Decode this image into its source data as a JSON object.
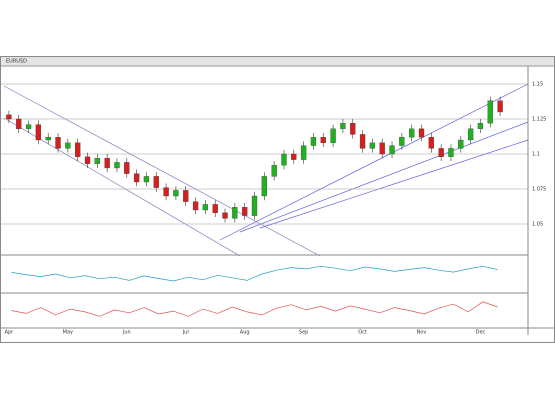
{
  "chart_data": {
    "type": "candlestick",
    "title": "EURUSD",
    "x": [
      "Apr",
      null,
      null,
      null,
      null,
      null,
      "May",
      null,
      null,
      null,
      null,
      null,
      "Jun",
      null,
      null,
      null,
      null,
      null,
      "Jul",
      null,
      null,
      null,
      null,
      null,
      "Aug",
      null,
      null,
      null,
      null,
      null,
      "Sep",
      null,
      null,
      null,
      null,
      null,
      "Oct",
      null,
      null,
      null,
      null,
      null,
      "Nov",
      null,
      null,
      null,
      null,
      null,
      "Dec",
      null,
      null
    ],
    "open": [
      1.128,
      1.125,
      1.118,
      1.121,
      1.11,
      1.112,
      1.104,
      1.108,
      1.098,
      1.093,
      1.097,
      1.09,
      1.094,
      1.086,
      1.08,
      1.084,
      1.076,
      1.07,
      1.074,
      1.066,
      1.06,
      1.064,
      1.058,
      1.054,
      1.062,
      1.056,
      1.07,
      1.084,
      1.092,
      1.1,
      1.096,
      1.106,
      1.112,
      1.108,
      1.118,
      1.122,
      1.114,
      1.104,
      1.108,
      1.1,
      1.106,
      1.112,
      1.118,
      1.112,
      1.104,
      1.098,
      1.104,
      1.11,
      1.118,
      1.122,
      1.138
    ],
    "high": [
      1.131,
      1.128,
      1.124,
      1.124,
      1.115,
      1.115,
      1.111,
      1.111,
      1.101,
      1.1,
      1.1,
      1.097,
      1.097,
      1.089,
      1.087,
      1.087,
      1.079,
      1.077,
      1.077,
      1.069,
      1.067,
      1.067,
      1.061,
      1.065,
      1.065,
      1.073,
      1.087,
      1.095,
      1.103,
      1.103,
      1.109,
      1.115,
      1.115,
      1.121,
      1.125,
      1.125,
      1.117,
      1.111,
      1.111,
      1.109,
      1.115,
      1.121,
      1.121,
      1.115,
      1.107,
      1.107,
      1.113,
      1.121,
      1.125,
      1.141,
      1.141
    ],
    "low": [
      1.122,
      1.115,
      1.115,
      1.107,
      1.107,
      1.101,
      1.101,
      1.095,
      1.09,
      1.09,
      1.087,
      1.087,
      1.083,
      1.077,
      1.077,
      1.073,
      1.067,
      1.067,
      1.063,
      1.057,
      1.057,
      1.055,
      1.051,
      1.051,
      1.053,
      1.053,
      1.067,
      1.081,
      1.089,
      1.093,
      1.093,
      1.103,
      1.105,
      1.105,
      1.115,
      1.111,
      1.101,
      1.101,
      1.097,
      1.097,
      1.103,
      1.109,
      1.109,
      1.101,
      1.095,
      1.095,
      1.101,
      1.107,
      1.115,
      1.119,
      1.127
    ],
    "close": [
      1.125,
      1.118,
      1.121,
      1.11,
      1.112,
      1.104,
      1.108,
      1.098,
      1.093,
      1.097,
      1.09,
      1.094,
      1.086,
      1.08,
      1.084,
      1.076,
      1.07,
      1.074,
      1.066,
      1.06,
      1.064,
      1.058,
      1.054,
      1.062,
      1.056,
      1.07,
      1.084,
      1.092,
      1.1,
      1.096,
      1.106,
      1.112,
      1.108,
      1.118,
      1.122,
      1.114,
      1.104,
      1.108,
      1.1,
      1.106,
      1.112,
      1.118,
      1.112,
      1.104,
      1.098,
      1.104,
      1.11,
      1.118,
      1.122,
      1.138,
      1.13
    ],
    "up_color": "#22b022",
    "down_color": "#d42020",
    "ylim": [
      1.03,
      1.16
    ],
    "yticks": [
      1.05,
      1.075,
      1.1,
      1.125,
      1.15
    ],
    "grid": true,
    "indicators": [
      {
        "color": "#20a0c0",
        "ylim": [
          0,
          100
        ],
        "values": [
          55,
          48,
          42,
          50,
          38,
          45,
          35,
          40,
          30,
          44,
          36,
          28,
          40,
          32,
          46,
          38,
          30,
          50,
          62,
          70,
          66,
          74,
          68,
          60,
          72,
          66,
          58,
          64,
          70,
          62,
          56,
          66,
          74,
          64
        ]
      },
      {
        "color": "#e05050",
        "ylim": [
          0,
          100
        ],
        "values": [
          50,
          40,
          60,
          35,
          55,
          45,
          30,
          52,
          42,
          60,
          38,
          48,
          30,
          55,
          40,
          62,
          45,
          35,
          58,
          70,
          52,
          64,
          48,
          66,
          55,
          42,
          60,
          50,
          38,
          58,
          72,
          45,
          80,
          62
        ]
      }
    ]
  }
}
